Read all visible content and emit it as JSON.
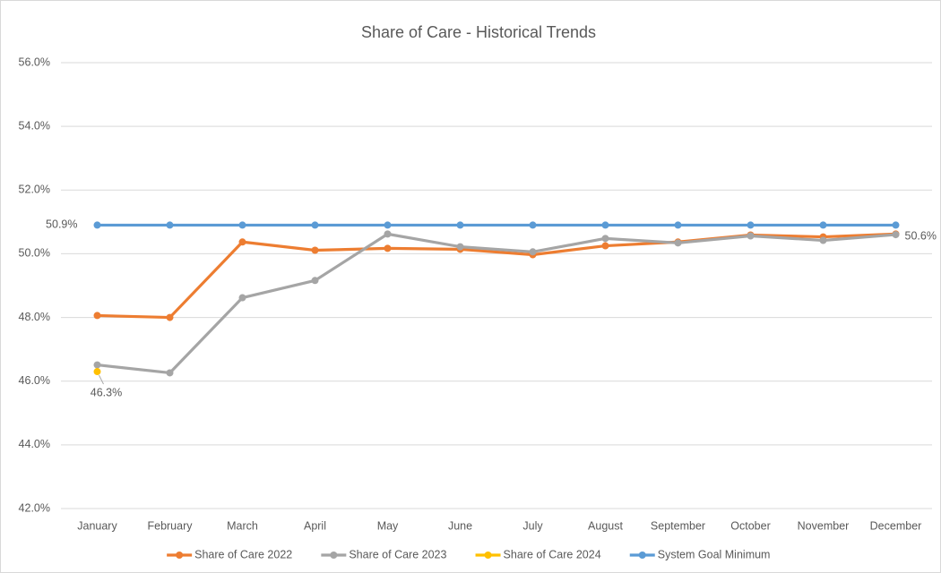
{
  "chart_data": {
    "type": "line",
    "title": "Share of Care - Historical Trends",
    "categories": [
      "January",
      "February",
      "March",
      "April",
      "May",
      "June",
      "July",
      "August",
      "September",
      "October",
      "November",
      "December"
    ],
    "series": [
      {
        "name": "Share of Care 2022",
        "color": "#ED7D31",
        "values": [
          48.06,
          48.0,
          50.37,
          50.11,
          50.17,
          50.14,
          49.97,
          50.25,
          50.37,
          50.59,
          50.53,
          50.62
        ]
      },
      {
        "name": "Share of Care 2023",
        "color": "#A5A5A5",
        "values": [
          46.51,
          46.26,
          48.62,
          49.16,
          50.62,
          50.22,
          50.06,
          50.48,
          50.34,
          50.56,
          50.42,
          50.6
        ],
        "value_labels": [
          null,
          null,
          null,
          null,
          null,
          null,
          null,
          null,
          null,
          null,
          null,
          "50.6%"
        ]
      },
      {
        "name": "Share of Care 2024",
        "color": "#FFC000",
        "values": [
          46.3,
          null,
          null,
          null,
          null,
          null,
          null,
          null,
          null,
          null,
          null,
          null
        ],
        "value_labels": [
          "46.3%",
          null,
          null,
          null,
          null,
          null,
          null,
          null,
          null,
          null,
          null,
          null
        ]
      },
      {
        "name": "System Goal Minimum",
        "color": "#5B9BD5",
        "values": [
          50.9,
          50.9,
          50.9,
          50.9,
          50.9,
          50.9,
          50.9,
          50.9,
          50.9,
          50.9,
          50.9,
          50.9
        ],
        "value_labels": [
          "50.9%",
          null,
          null,
          null,
          null,
          null,
          null,
          null,
          null,
          null,
          null,
          null
        ]
      }
    ],
    "ylim": [
      42,
      56
    ],
    "yticks": [
      {
        "value": 42,
        "label": "42.0%"
      },
      {
        "value": 44,
        "label": "44.0%"
      },
      {
        "value": 46,
        "label": "46.0%"
      },
      {
        "value": 48,
        "label": "48.0%"
      },
      {
        "value": 50,
        "label": "50.0%"
      },
      {
        "value": 52,
        "label": "52.0%"
      },
      {
        "value": 54,
        "label": "54.0%"
      },
      {
        "value": 56,
        "label": "56.0%"
      }
    ],
    "grid": true,
    "legend": "bottom"
  }
}
